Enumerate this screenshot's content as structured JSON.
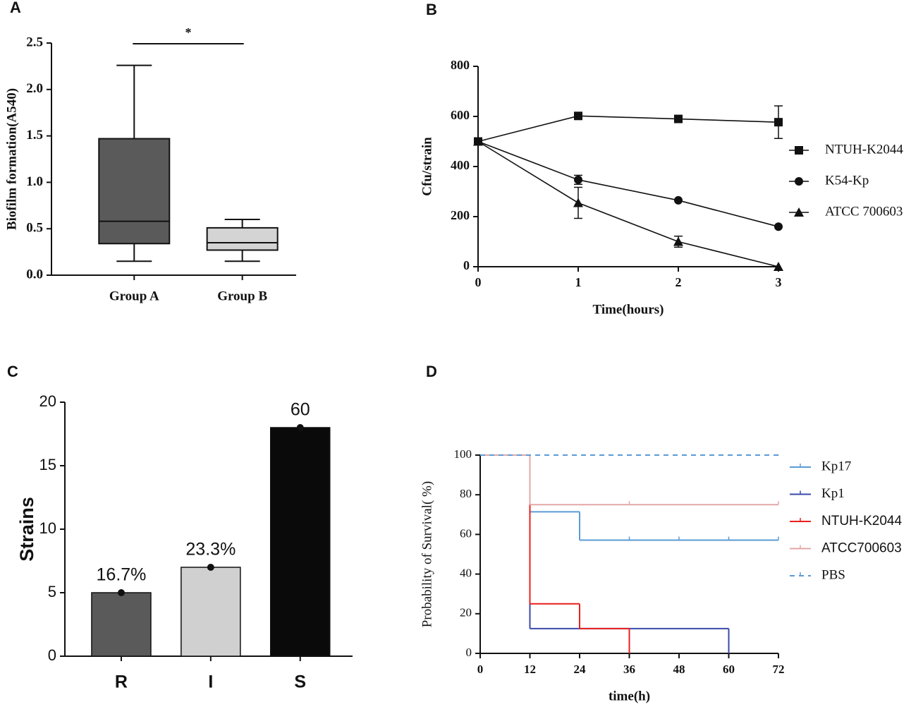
{
  "chart_data": [
    {
      "type": "box",
      "label": "A",
      "ylabel": "Biofilm formation(A540)",
      "categories": [
        "Group A",
        "Group B"
      ],
      "boxes": [
        {
          "min": 0.15,
          "q1": 0.34,
          "median": 0.58,
          "q3": 1.47,
          "max": 2.26
        },
        {
          "min": 0.15,
          "q1": 0.27,
          "median": 0.35,
          "q3": 0.51,
          "max": 0.6
        }
      ],
      "colors": [
        "#5a5a5a",
        "#d4d4d4"
      ],
      "ylim": [
        0,
        2.5
      ],
      "yticks": [
        {
          "value": 0,
          "label": "0.0"
        },
        {
          "value": 0.5,
          "label": "0.5"
        },
        {
          "value": 1,
          "label": "1.0"
        },
        {
          "value": 1.5,
          "label": "1.5"
        },
        {
          "value": 2,
          "label": "2.0"
        },
        {
          "value": 2.5,
          "label": "2.5"
        }
      ],
      "annotation": "*"
    },
    {
      "type": "line",
      "label": "B",
      "xlabel": "Time(hours)",
      "ylabel": "Cfu/strain",
      "x": [
        0,
        1,
        2,
        3
      ],
      "xlim": [
        0,
        3
      ],
      "xticks": [
        0,
        1,
        2,
        3
      ],
      "ylim": [
        0,
        800
      ],
      "yticks": [
        0,
        200,
        400,
        600,
        800
      ],
      "series": [
        {
          "name": "NTUH-K2044",
          "color": "#111111",
          "marker": "square",
          "values": [
            500,
            602,
            590,
            577
          ],
          "errors": [
            null,
            null,
            null,
            65
          ]
        },
        {
          "name": "K54-Kp",
          "color": "#111111",
          "marker": "circle",
          "values": [
            500,
            347,
            265,
            160
          ],
          "errors": [
            null,
            18,
            null,
            null
          ]
        },
        {
          "name": "ATCC 700603",
          "color": "#111111",
          "marker": "triangle",
          "values": [
            500,
            255,
            100,
            0
          ],
          "errors": [
            null,
            62,
            22,
            null
          ]
        }
      ]
    },
    {
      "type": "bar",
      "label": "C",
      "ylabel": "Strains",
      "categories": [
        "R",
        "I",
        "S"
      ],
      "values": [
        5,
        7,
        18
      ],
      "annotations": [
        "16.7%",
        "23.3%",
        "60"
      ],
      "colors": [
        "#5a5a5a",
        "#d0d0d0",
        "#0a0a0a"
      ],
      "ylim": [
        0,
        20
      ],
      "yticks": [
        0,
        5,
        10,
        15,
        20
      ]
    },
    {
      "type": "step",
      "label": "D",
      "xlabel": "time(h)",
      "ylabel": "Probability of Survival(  %)",
      "xlim": [
        0,
        72
      ],
      "xticks": [
        0,
        12,
        24,
        36,
        48,
        60,
        72
      ],
      "ylim": [
        0,
        100
      ],
      "yticks": [
        0,
        20,
        40,
        60,
        80,
        100
      ],
      "series": [
        {
          "name": "Kp17",
          "color": "#5b9bd5",
          "x": [
            0,
            12,
            24,
            72
          ],
          "values": [
            100,
            71.4,
            57.1,
            57.1
          ],
          "censored": [
            36,
            48,
            60,
            72
          ]
        },
        {
          "name": "Kp1",
          "color": "#3949ab",
          "x": [
            0,
            12,
            60
          ],
          "values": [
            100,
            12.5,
            0
          ]
        },
        {
          "name": "NTUH-K2044",
          "color": "#e8201e",
          "x": [
            0,
            12,
            24,
            36
          ],
          "values": [
            100,
            25,
            12.5,
            0
          ]
        },
        {
          "name": "ATCC700603",
          "color": "#e3a7a7",
          "x": [
            0,
            12,
            72
          ],
          "values": [
            100,
            75,
            75
          ],
          "censored": [
            36,
            72
          ]
        },
        {
          "name": "PBS",
          "color": "#5b9bd5",
          "dash": true,
          "x": [
            0,
            72
          ],
          "values": [
            100,
            100
          ]
        }
      ]
    }
  ]
}
